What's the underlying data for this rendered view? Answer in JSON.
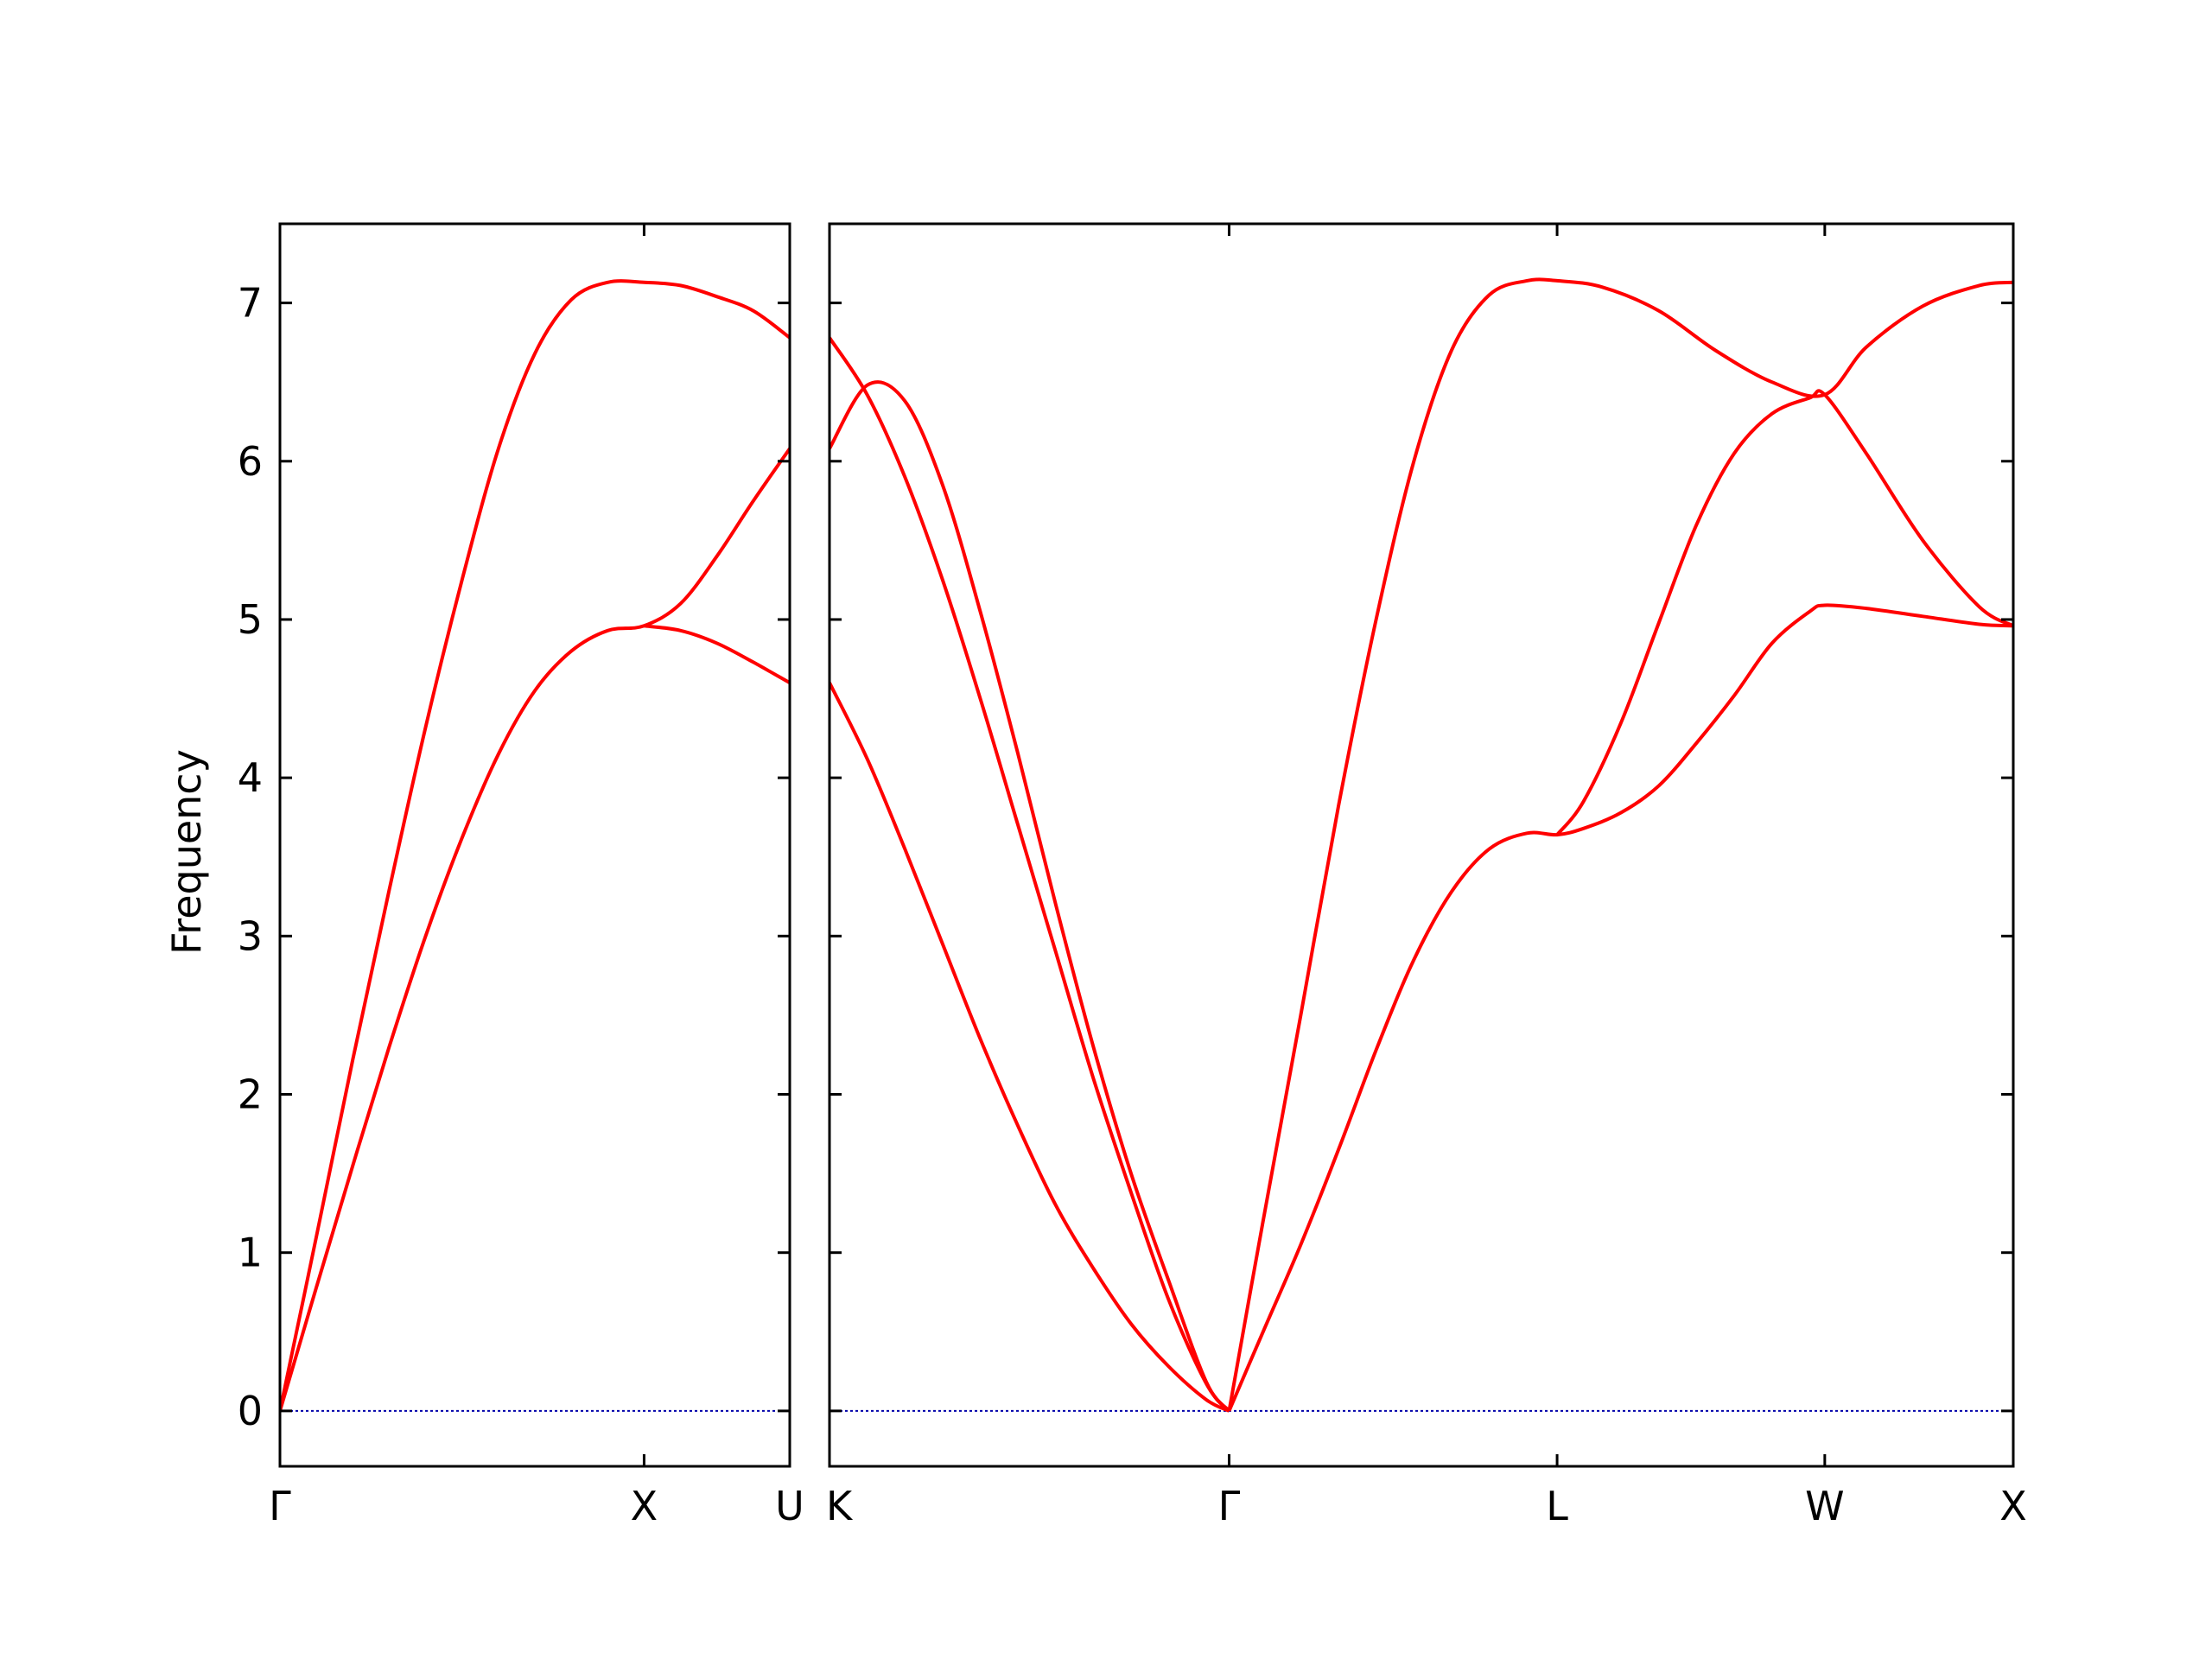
{
  "chart_data": {
    "type": "line",
    "ylabel": "Frequency",
    "ylim": [
      -0.35,
      7.5
    ],
    "yticks": [
      0,
      1,
      2,
      3,
      4,
      5,
      6,
      7
    ],
    "grid": false,
    "line_color": "#ff0000",
    "zero_line_color": "#0000aa",
    "panels": [
      {
        "x_range": [
          0,
          1.4
        ],
        "kpoints": [
          {
            "label": "Γ",
            "x": 0
          },
          {
            "label": "X",
            "x": 1.0
          },
          {
            "label": "U",
            "x": 1.4
          }
        ],
        "series": [
          {
            "x": [
              0,
              0.1,
              0.2,
              0.3,
              0.4,
              0.5,
              0.6,
              0.7,
              0.8,
              0.9,
              1.0,
              1.1,
              1.2,
              1.3,
              1.4
            ],
            "y": [
              0,
              1.1,
              2.22,
              3.29,
              4.32,
              5.25,
              6.08,
              6.68,
              7.02,
              7.13,
              7.13,
              7.11,
              7.04,
              6.95,
              6.78
            ]
          },
          {
            "x": [
              0,
              0.1,
              0.2,
              0.3,
              0.4,
              0.5,
              0.6,
              0.7,
              0.8,
              0.9,
              1.0,
              1.1,
              1.2,
              1.3,
              1.4
            ],
            "y": [
              0,
              0.78,
              1.55,
              2.3,
              3.0,
              3.62,
              4.15,
              4.55,
              4.8,
              4.93,
              4.96,
              5.1,
              5.4,
              5.75,
              6.08
            ]
          },
          {
            "x": [
              1.0,
              1.1,
              1.2,
              1.3,
              1.4
            ],
            "y": [
              4.96,
              4.93,
              4.85,
              4.73,
              4.6
            ]
          }
        ]
      },
      {
        "x_range": [
          0,
          3.14
        ],
        "kpoints": [
          {
            "label": "K",
            "x": 0
          },
          {
            "label": "Γ",
            "x": 1.06
          },
          {
            "label": "L",
            "x": 1.93
          },
          {
            "label": "W",
            "x": 2.64
          },
          {
            "label": "X",
            "x": 3.14
          }
        ],
        "series": [
          {
            "x": [
              0,
              0.1,
              0.2,
              0.3,
              0.4,
              0.5,
              0.6,
              0.7,
              0.8,
              0.9,
              1.0,
              1.06
            ],
            "y": [
              6.78,
              6.42,
              5.9,
              5.25,
              4.5,
              3.7,
              2.9,
              2.1,
              1.38,
              0.7,
              0.17,
              0
            ]
          },
          {
            "x": [
              0,
              0.1,
              0.2,
              0.3,
              0.4,
              0.5,
              0.6,
              0.7,
              0.8,
              0.9,
              1.0,
              1.06
            ],
            "y": [
              6.08,
              6.48,
              6.38,
              5.85,
              5.05,
              4.15,
              3.2,
              2.3,
              1.5,
              0.82,
              0.18,
              0
            ]
          },
          {
            "x": [
              0,
              0.1,
              0.2,
              0.3,
              0.4,
              0.5,
              0.6,
              0.7,
              0.8,
              0.9,
              1.0,
              1.06
            ],
            "y": [
              4.6,
              4.12,
              3.55,
              2.95,
              2.35,
              1.8,
              1.3,
              0.9,
              0.55,
              0.28,
              0.07,
              0
            ]
          },
          {
            "x": [
              1.06,
              1.15,
              1.25,
              1.35,
              1.45,
              1.55,
              1.65,
              1.75,
              1.85,
              1.93,
              2.05,
              2.2,
              2.35,
              2.5,
              2.64,
              2.75,
              2.9,
              3.05,
              3.14
            ],
            "y": [
              0,
              1.2,
              2.5,
              3.82,
              5.0,
              6.0,
              6.7,
              7.05,
              7.14,
              7.14,
              7.1,
              6.95,
              6.7,
              6.5,
              6.42,
              6.72,
              6.98,
              7.11,
              7.13
            ]
          },
          {
            "x": [
              1.06,
              1.15,
              1.25,
              1.35,
              1.45,
              1.55,
              1.65,
              1.75,
              1.85,
              1.93,
              2.0,
              2.1,
              2.2,
              2.3,
              2.4,
              2.5,
              2.6,
              2.64,
              2.75,
              2.9,
              3.05,
              3.14
            ],
            "y": [
              0,
              0.5,
              1.05,
              1.65,
              2.28,
              2.85,
              3.28,
              3.55,
              3.65,
              3.64,
              3.68,
              3.78,
              3.95,
              4.22,
              4.52,
              4.85,
              5.05,
              5.09,
              5.07,
              5.02,
              4.97,
              4.96
            ]
          },
          {
            "x": [
              1.93,
              2.0,
              2.1,
              2.2,
              2.3,
              2.4,
              2.5,
              2.6,
              2.64,
              2.75,
              2.9,
              3.05,
              3.14
            ],
            "y": [
              3.64,
              3.85,
              4.35,
              4.98,
              5.6,
              6.05,
              6.3,
              6.4,
              6.42,
              6.05,
              5.5,
              5.08,
              4.96
            ]
          }
        ]
      }
    ]
  }
}
